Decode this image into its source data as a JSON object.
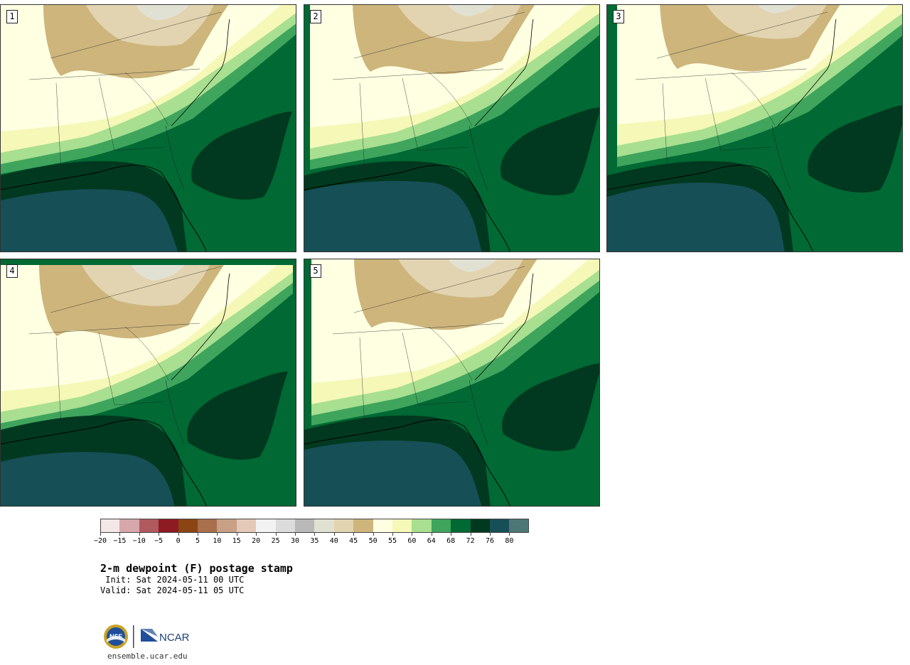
{
  "panels": [
    {
      "label": "1",
      "variant": 0
    },
    {
      "label": "2",
      "variant": 1
    },
    {
      "label": "3",
      "variant": 2
    },
    {
      "label": "4",
      "variant": 3
    },
    {
      "label": "5",
      "variant": 4
    }
  ],
  "colorbar": {
    "colors": [
      "#f3e7e7",
      "#d6a8ab",
      "#b05a60",
      "#8e1a22",
      "#8b4513",
      "#a8704c",
      "#c8a086",
      "#e5c9b8",
      "#f2f2f2",
      "#dcdcdc",
      "#b9b9b9",
      "#e1e1d3",
      "#e2d4b0",
      "#cdb57c",
      "#ffffe2",
      "#f5f8b7",
      "#a9df90",
      "#3fa55d",
      "#006934",
      "#00391f",
      "#164f56",
      "#4d7777"
    ],
    "tick_labels": [
      "−20",
      "−15",
      "−10",
      "−5",
      "0",
      "5",
      "10",
      "15",
      "20",
      "25",
      "30",
      "35",
      "40",
      "45",
      "50",
      "55",
      "60",
      "64",
      "68",
      "72",
      "76",
      "80"
    ]
  },
  "title": "2-m dewpoint (F) postage stamp",
  "init": " Init: Sat 2024-05-11 00 UTC",
  "valid": "Valid: Sat 2024-05-11 05 UTC",
  "logos": {
    "nsf": "NSF",
    "ncar": "NCAR"
  },
  "site": "ensemble.ucar.edu"
}
